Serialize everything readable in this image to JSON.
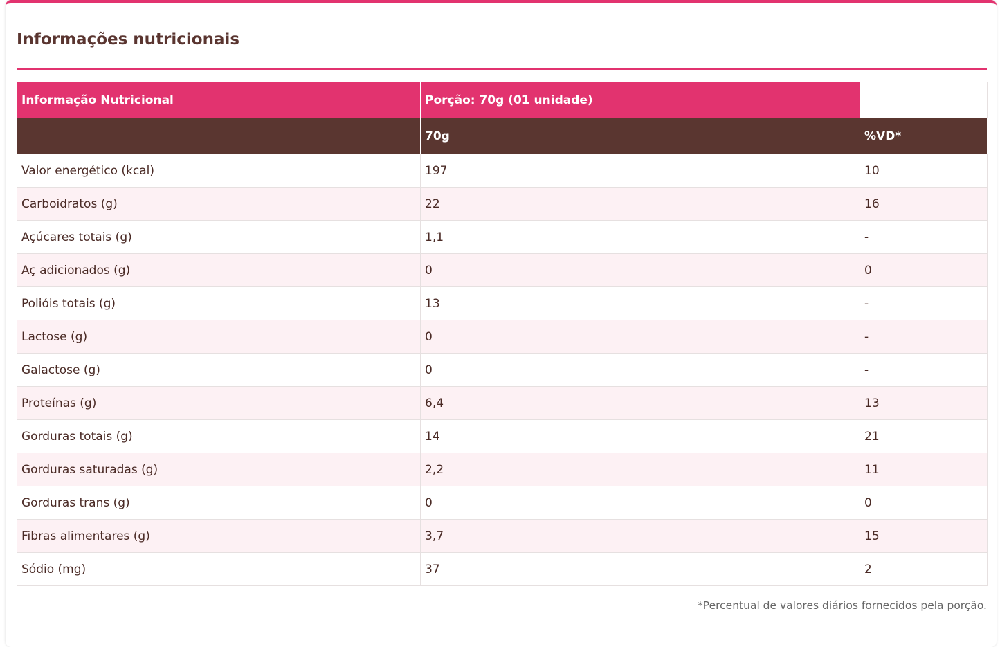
{
  "title": "Informações nutricionais",
  "table": {
    "header": [
      "Informação Nutricional",
      "Porção: 70g (01 unidade)"
    ],
    "subheader": [
      "70g",
      "%VD*"
    ],
    "rows": [
      [
        "Valor energético (kcal)",
        "197",
        "10"
      ],
      [
        "Carboidratos (g)",
        "22",
        "16"
      ],
      [
        "Açúcares totais (g)",
        "1,1",
        "-"
      ],
      [
        "Aç adicionados (g)",
        "0",
        "0"
      ],
      [
        "Polióis totais (g)",
        "13",
        "-"
      ],
      [
        "Lactose (g)",
        "0",
        "-"
      ],
      [
        "Galactose (g)",
        "0",
        "-"
      ],
      [
        "Proteínas (g)",
        "6,4",
        "13"
      ],
      [
        "Gorduras totais (g)",
        "14",
        "21"
      ],
      [
        "Gorduras saturadas (g)",
        "2,2",
        "11"
      ],
      [
        "Gorduras trans (g)",
        "0",
        "0"
      ],
      [
        "Fibras alimentares (g)",
        "3,7",
        "15"
      ],
      [
        "Sódio (mg)",
        "37",
        "2"
      ]
    ]
  },
  "footnote": "*Percentual de valores diários fornecidos pela porção."
}
